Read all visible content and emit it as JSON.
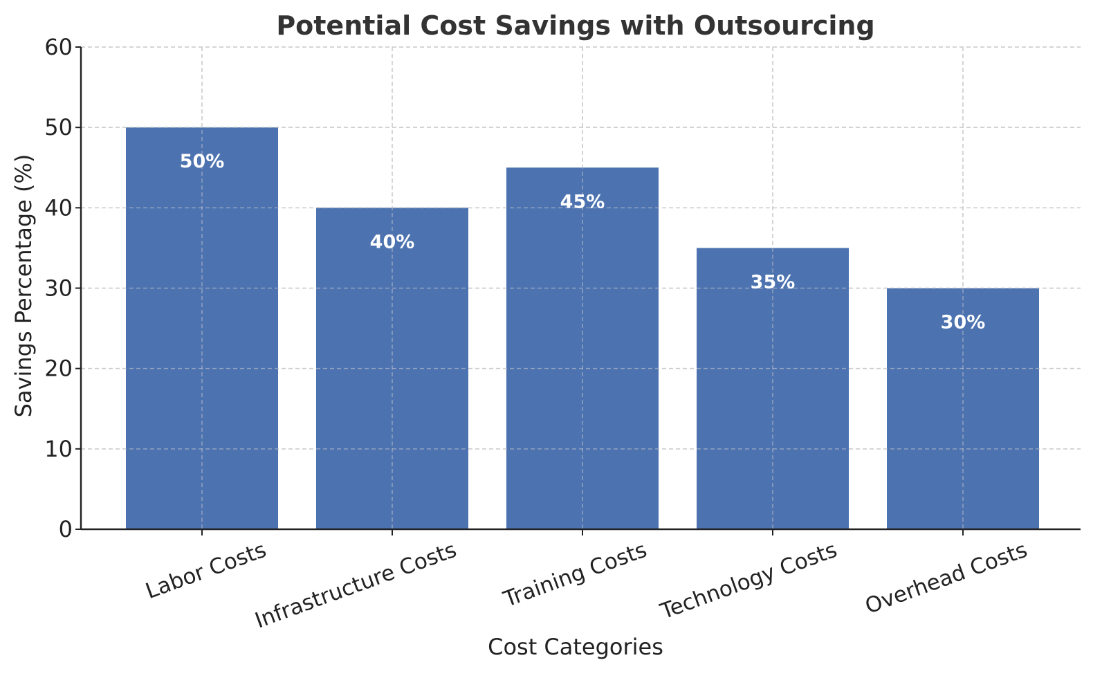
{
  "chart_data": {
    "type": "bar",
    "title": "Potential Cost Savings with Outsourcing",
    "xlabel": "Cost Categories",
    "ylabel": "Savings Percentage (%)",
    "categories": [
      "Labor Costs",
      "Infrastructure Costs",
      "Training Costs",
      "Technology Costs",
      "Overhead Costs"
    ],
    "values": [
      50,
      40,
      45,
      35,
      30
    ],
    "data_labels": [
      "50%",
      "40%",
      "45%",
      "35%",
      "30%"
    ],
    "ylim": [
      0,
      60
    ],
    "yticks": [
      0,
      10,
      20,
      30,
      40,
      50,
      60
    ],
    "grid": true,
    "bar_color": "#4c72b0"
  }
}
